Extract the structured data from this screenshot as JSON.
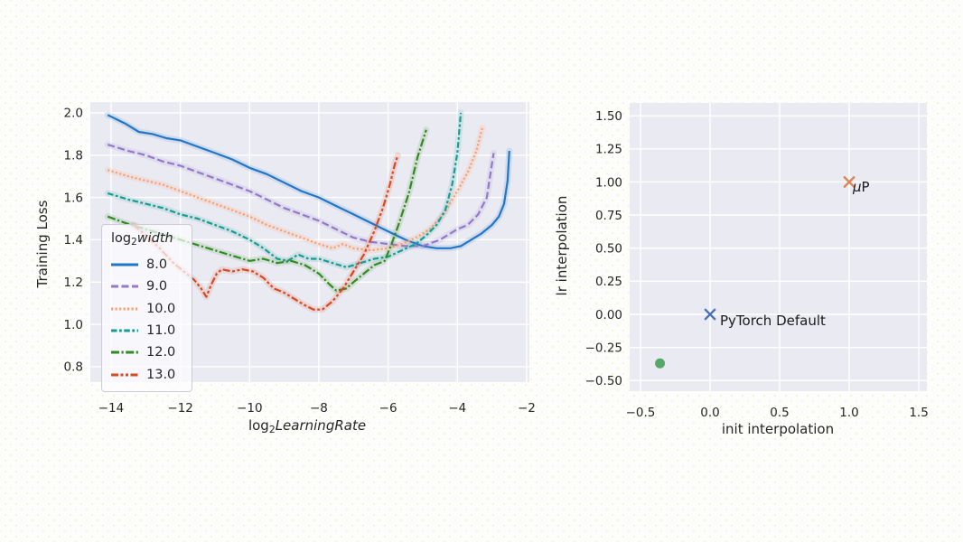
{
  "colors": {
    "axes_background": "#eaeaf2",
    "grid": "#ffffff",
    "text": "#262626",
    "page_background": "#fdfdfb"
  },
  "chart_data": [
    {
      "type": "line",
      "title": "",
      "xlabel": "log2 LearningRate",
      "xlabel_parts": {
        "prefix": "log",
        "sub": "2",
        "word": "LearningRate"
      },
      "ylabel": "Training Loss",
      "xlim": [
        -14.6,
        -1.92
      ],
      "ylim": [
        0.727,
        2.051
      ],
      "grid": true,
      "x_ticks": [
        -14,
        -12,
        -10,
        -8,
        -6,
        -4,
        -2
      ],
      "x_tick_labels": [
        "−14",
        "−12",
        "−10",
        "−8",
        "−6",
        "−4",
        "−2"
      ],
      "y_ticks": [
        0.8,
        1.0,
        1.2,
        1.4,
        1.6,
        1.8,
        2.0
      ],
      "y_tick_labels": [
        "0.8",
        "1.0",
        "1.2",
        "1.4",
        "1.6",
        "1.8",
        "2.0"
      ],
      "legend": {
        "position": "lower left",
        "title": "log2 width",
        "title_parts": {
          "prefix": "log",
          "sub": "2",
          "word": "width"
        }
      },
      "series": [
        {
          "name": "8.0",
          "color": "#2176c7",
          "dash": "solid",
          "points": [
            [
              -14.1,
              1.99
            ],
            [
              -13.6,
              1.95
            ],
            [
              -13.2,
              1.91
            ],
            [
              -12.8,
              1.9
            ],
            [
              -12.4,
              1.88
            ],
            [
              -12,
              1.87
            ],
            [
              -11.5,
              1.84
            ],
            [
              -11,
              1.81
            ],
            [
              -10.5,
              1.78
            ],
            [
              -10,
              1.74
            ],
            [
              -9.5,
              1.71
            ],
            [
              -9,
              1.67
            ],
            [
              -8.5,
              1.63
            ],
            [
              -8,
              1.6
            ],
            [
              -7.5,
              1.56
            ],
            [
              -7,
              1.52
            ],
            [
              -6.5,
              1.48
            ],
            [
              -6,
              1.44
            ],
            [
              -5.5,
              1.4
            ],
            [
              -5,
              1.37
            ],
            [
              -4.6,
              1.36
            ],
            [
              -4.2,
              1.36
            ],
            [
              -3.9,
              1.37
            ],
            [
              -3.6,
              1.4
            ],
            [
              -3.3,
              1.43
            ],
            [
              -3,
              1.47
            ],
            [
              -2.8,
              1.51
            ],
            [
              -2.65,
              1.57
            ],
            [
              -2.55,
              1.68
            ],
            [
              -2.5,
              1.82
            ]
          ]
        },
        {
          "name": "9.0",
          "color": "#9478c9",
          "dash": "dashed",
          "points": [
            [
              -14.1,
              1.85
            ],
            [
              -13.5,
              1.82
            ],
            [
              -13,
              1.8
            ],
            [
              -12.5,
              1.77
            ],
            [
              -12,
              1.75
            ],
            [
              -11.5,
              1.72
            ],
            [
              -11,
              1.69
            ],
            [
              -10.5,
              1.66
            ],
            [
              -10,
              1.63
            ],
            [
              -9.5,
              1.59
            ],
            [
              -9,
              1.55
            ],
            [
              -8.5,
              1.52
            ],
            [
              -8,
              1.49
            ],
            [
              -7.5,
              1.45
            ],
            [
              -7,
              1.41
            ],
            [
              -6.5,
              1.39
            ],
            [
              -6,
              1.38
            ],
            [
              -5.5,
              1.37
            ],
            [
              -5,
              1.37
            ],
            [
              -4.5,
              1.4
            ],
            [
              -4,
              1.45
            ],
            [
              -3.7,
              1.47
            ],
            [
              -3.4,
              1.52
            ],
            [
              -3.15,
              1.6
            ],
            [
              -3.0,
              1.76
            ],
            [
              -2.95,
              1.81
            ]
          ]
        },
        {
          "name": "10.0",
          "color": "#ff9e6d",
          "dash": "dotted",
          "points": [
            [
              -14.1,
              1.73
            ],
            [
              -13.5,
              1.7
            ],
            [
              -13,
              1.68
            ],
            [
              -12.5,
              1.66
            ],
            [
              -12,
              1.63
            ],
            [
              -11.5,
              1.6
            ],
            [
              -11,
              1.57
            ],
            [
              -10.5,
              1.54
            ],
            [
              -10,
              1.51
            ],
            [
              -9.5,
              1.47
            ],
            [
              -9,
              1.44
            ],
            [
              -8.5,
              1.41
            ],
            [
              -8,
              1.38
            ],
            [
              -7.6,
              1.36
            ],
            [
              -7.3,
              1.38
            ],
            [
              -7,
              1.36
            ],
            [
              -6.5,
              1.35
            ],
            [
              -6,
              1.36
            ],
            [
              -5.6,
              1.38
            ],
            [
              -5.2,
              1.41
            ],
            [
              -4.8,
              1.45
            ],
            [
              -4.4,
              1.52
            ],
            [
              -4,
              1.63
            ],
            [
              -3.7,
              1.72
            ],
            [
              -3.45,
              1.82
            ],
            [
              -3.28,
              1.93
            ]
          ]
        },
        {
          "name": "11.0",
          "color": "#169d92",
          "dash": "dash-dot",
          "points": [
            [
              -14.1,
              1.62
            ],
            [
              -13.5,
              1.59
            ],
            [
              -13,
              1.57
            ],
            [
              -12.5,
              1.55
            ],
            [
              -12,
              1.52
            ],
            [
              -11.5,
              1.5
            ],
            [
              -11,
              1.47
            ],
            [
              -10.5,
              1.44
            ],
            [
              -10,
              1.4
            ],
            [
              -9.6,
              1.36
            ],
            [
              -9.2,
              1.31
            ],
            [
              -8.9,
              1.3
            ],
            [
              -8.6,
              1.33
            ],
            [
              -8.3,
              1.31
            ],
            [
              -8,
              1.31
            ],
            [
              -7.6,
              1.29
            ],
            [
              -7.2,
              1.27
            ],
            [
              -6.8,
              1.29
            ],
            [
              -6.4,
              1.31
            ],
            [
              -6,
              1.32
            ],
            [
              -5.6,
              1.35
            ],
            [
              -5.2,
              1.38
            ],
            [
              -4.9,
              1.42
            ],
            [
              -4.6,
              1.47
            ],
            [
              -4.35,
              1.54
            ],
            [
              -4.15,
              1.66
            ],
            [
              -4.0,
              1.81
            ],
            [
              -3.9,
              2.0
            ]
          ]
        },
        {
          "name": "12.0",
          "color": "#2f8b1f",
          "dash": "long-dash-dot",
          "points": [
            [
              -14.1,
              1.51
            ],
            [
              -13.6,
              1.48
            ],
            [
              -13.2,
              1.46
            ],
            [
              -12.8,
              1.44
            ],
            [
              -12.4,
              1.42
            ],
            [
              -12,
              1.4
            ],
            [
              -11.6,
              1.38
            ],
            [
              -11.2,
              1.36
            ],
            [
              -10.8,
              1.34
            ],
            [
              -10.4,
              1.32
            ],
            [
              -10,
              1.3
            ],
            [
              -9.6,
              1.31
            ],
            [
              -9.2,
              1.29
            ],
            [
              -8.8,
              1.3
            ],
            [
              -8.4,
              1.28
            ],
            [
              -8,
              1.24
            ],
            [
              -7.7,
              1.19
            ],
            [
              -7.5,
              1.16
            ],
            [
              -7.2,
              1.17
            ],
            [
              -7,
              1.2
            ],
            [
              -6.7,
              1.24
            ],
            [
              -6.4,
              1.28
            ],
            [
              -6.1,
              1.3
            ],
            [
              -5.9,
              1.38
            ],
            [
              -5.7,
              1.47
            ],
            [
              -5.4,
              1.62
            ],
            [
              -5.15,
              1.79
            ],
            [
              -4.9,
              1.92
            ]
          ]
        },
        {
          "name": "13.0",
          "color": "#d9481e",
          "dash": "dash-dot-dot",
          "points": [
            [
              -13.35,
              1.47
            ],
            [
              -13,
              1.42
            ],
            [
              -12.6,
              1.36
            ],
            [
              -12.2,
              1.29
            ],
            [
              -11.9,
              1.25
            ],
            [
              -11.6,
              1.21
            ],
            [
              -11.4,
              1.17
            ],
            [
              -11.25,
              1.13
            ],
            [
              -11.1,
              1.19
            ],
            [
              -10.95,
              1.24
            ],
            [
              -10.8,
              1.26
            ],
            [
              -10.5,
              1.25
            ],
            [
              -10.2,
              1.26
            ],
            [
              -9.9,
              1.25
            ],
            [
              -9.6,
              1.22
            ],
            [
              -9.3,
              1.17
            ],
            [
              -9,
              1.15
            ],
            [
              -8.7,
              1.12
            ],
            [
              -8.4,
              1.09
            ],
            [
              -8.15,
              1.07
            ],
            [
              -7.9,
              1.07
            ],
            [
              -7.6,
              1.11
            ],
            [
              -7.3,
              1.17
            ],
            [
              -7,
              1.25
            ],
            [
              -6.7,
              1.33
            ],
            [
              -6.4,
              1.44
            ],
            [
              -6.15,
              1.55
            ],
            [
              -5.95,
              1.66
            ],
            [
              -5.8,
              1.76
            ],
            [
              -5.72,
              1.8
            ]
          ]
        }
      ]
    },
    {
      "type": "scatter",
      "title": "",
      "xlabel": "init interpolation",
      "ylabel": "lr interpolation",
      "xlim": [
        -0.578,
        1.558
      ],
      "ylim": [
        -0.58,
        1.597
      ],
      "grid": true,
      "x_ticks": [
        -0.5,
        0.0,
        0.5,
        1.0,
        1.5
      ],
      "x_tick_labels": [
        "−0.5",
        "0.0",
        "0.5",
        "1.0",
        "1.5"
      ],
      "y_ticks": [
        -0.5,
        -0.25,
        0.0,
        0.25,
        0.5,
        0.75,
        1.0,
        1.25,
        1.5
      ],
      "y_tick_labels": [
        "−0.50",
        "−0.25",
        "0.00",
        "0.25",
        "0.50",
        "0.75",
        "1.00",
        "1.25",
        "1.50"
      ],
      "points": [
        {
          "x": 1.0,
          "y": 1.0,
          "marker": "x",
          "color": "#dd8452",
          "label": "μP",
          "label_parts": {
            "mu": "μ",
            "p": "P"
          }
        },
        {
          "x": 0.0,
          "y": 0.0,
          "marker": "x",
          "color": "#4c72b0",
          "label": "PyTorch Default"
        },
        {
          "x": -0.36,
          "y": -0.37,
          "marker": "circle",
          "color": "#55a868",
          "label": ""
        }
      ]
    }
  ]
}
